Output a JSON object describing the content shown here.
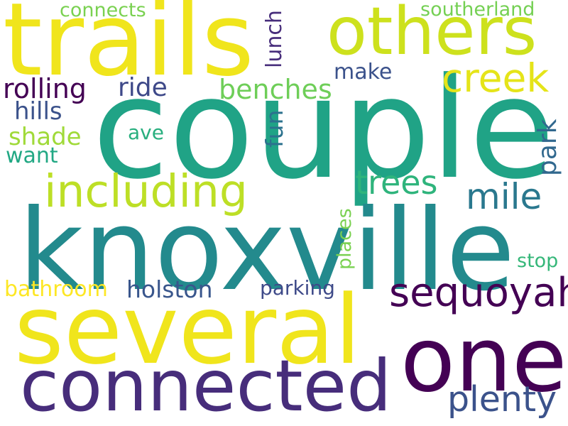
{
  "words": {
    "couple": {
      "text": "couple",
      "color": "#20a386"
    },
    "knoxville": {
      "text": "knoxville",
      "color": "#238a8d"
    },
    "trails": {
      "text": "trails",
      "color": "#f0e51c"
    },
    "several": {
      "text": "several",
      "color": "#f0e51c"
    },
    "one": {
      "text": "one",
      "color": "#440154"
    },
    "connected": {
      "text": "connected",
      "color": "#472d7b"
    },
    "others": {
      "text": "others",
      "color": "#cde11d"
    },
    "including": {
      "text": "including",
      "color": "#bddf26"
    },
    "sequoyah": {
      "text": "sequoyah",
      "color": "#440154"
    },
    "creek": {
      "text": "creek",
      "color": "#e5e419"
    },
    "plenty": {
      "text": "plenty",
      "color": "#3b528b"
    },
    "mile": {
      "text": "mile",
      "color": "#2a788e"
    },
    "trees": {
      "text": "trees",
      "color": "#2fb47c"
    },
    "benches": {
      "text": "benches",
      "color": "#6ece58"
    },
    "rolling": {
      "text": "rolling",
      "color": "#440154"
    },
    "ride": {
      "text": "ride",
      "color": "#3e4989"
    },
    "make": {
      "text": "make",
      "color": "#3b528b"
    },
    "hills": {
      "text": "hills",
      "color": "#3b528b"
    },
    "shade": {
      "text": "shade",
      "color": "#a0da39"
    },
    "fun": {
      "text": "fun",
      "color": "#2c728e"
    },
    "park": {
      "text": "park",
      "color": "#31688e"
    },
    "lunch": {
      "text": "lunch",
      "color": "#472d7b"
    },
    "ave": {
      "text": "ave",
      "color": "#29af7f"
    },
    "want": {
      "text": "want",
      "color": "#22a884"
    },
    "connects": {
      "text": "connects",
      "color": "#7ad151"
    },
    "southerland": {
      "text": "southerland",
      "color": "#75d054"
    },
    "places": {
      "text": "places",
      "color": "#7ad151"
    },
    "holston": {
      "text": "holston",
      "color": "#39568c"
    },
    "parking": {
      "text": "parking",
      "color": "#3e4a89"
    },
    "bathroom": {
      "text": "bathroom",
      "color": "#fde725"
    },
    "stop": {
      "text": "stop",
      "color": "#35b779"
    }
  }
}
